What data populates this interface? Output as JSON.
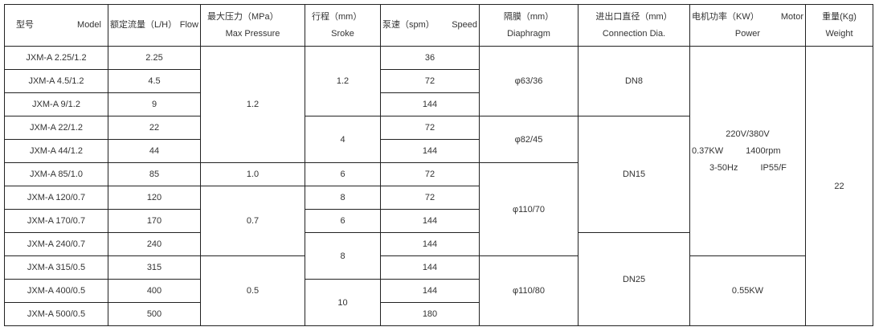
{
  "header": {
    "model": {
      "cn": "型号",
      "en": "Model"
    },
    "flow": {
      "cn": "额定流量（L/H）",
      "en": "Flow"
    },
    "pressure": {
      "cn": "最大压力（MPa）",
      "en": "Max Pressure"
    },
    "stroke": {
      "cn": "行程（mm）",
      "en": "Sroke"
    },
    "speed": {
      "cn": "泵速（spm）",
      "en": "Speed"
    },
    "diaphragm": {
      "cn": "隔膜（mm）",
      "en": "Diaphragm"
    },
    "connection": {
      "cn": "进出口直径（mm）",
      "en": "Connection Dia."
    },
    "motor": {
      "cn": "电机功率（KW）",
      "en1": "Motor",
      "en2": "Power"
    },
    "weight": {
      "cn": "重量(Kg)",
      "en": "Weight"
    }
  },
  "rows": [
    {
      "model": "JXM-A 2.25/1.2",
      "flow": "2.25",
      "speed": "36"
    },
    {
      "model": "JXM-A 4.5/1.2",
      "flow": "4.5",
      "speed": "72"
    },
    {
      "model": "JXM-A 9/1.2",
      "flow": "9",
      "speed": "144"
    },
    {
      "model": "JXM-A 22/1.2",
      "flow": "22",
      "speed": "72"
    },
    {
      "model": "JXM-A 44/1.2",
      "flow": "44",
      "speed": "144"
    },
    {
      "model": "JXM-A 85/1.0",
      "flow": "85",
      "speed": "72"
    },
    {
      "model": "JXM-A 120/0.7",
      "flow": "120",
      "speed": "72"
    },
    {
      "model": "JXM-A 170/0.7",
      "flow": "170",
      "speed": "144"
    },
    {
      "model": "JXM-A 240/0.7",
      "flow": "240",
      "speed": "144"
    },
    {
      "model": "JXM-A 315/0.5",
      "flow": "315",
      "speed": "144"
    },
    {
      "model": "JXM-A 400/0.5",
      "flow": "400",
      "speed": "144"
    },
    {
      "model": "JXM-A 500/0.5",
      "flow": "500",
      "speed": "180"
    }
  ],
  "merged": {
    "pressure": [
      "1.2",
      "1.0",
      "0.7",
      "0.5"
    ],
    "stroke": [
      "1.2",
      "4",
      "6",
      "8",
      "6",
      "8",
      "10"
    ],
    "diaphragm": [
      "φ63/36",
      "φ82/45",
      "φ110/70",
      "φ110/80"
    ],
    "connection": [
      "DN8",
      "DN15",
      "DN25"
    ],
    "motor_a": {
      "voltage": "220V/380V",
      "power": "0.37KW",
      "rpm": "1400rpm",
      "freq": "3-50Hz",
      "protection": "IP55/F"
    },
    "motor_b": "0.55KW",
    "weight": "22"
  }
}
